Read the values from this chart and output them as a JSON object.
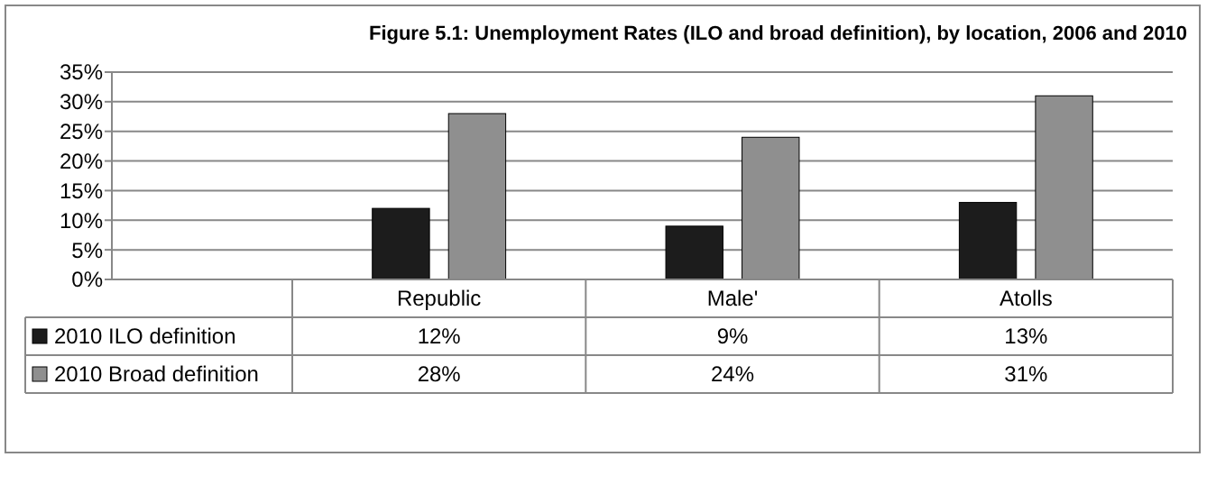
{
  "chart_data": {
    "type": "bar",
    "title": "Figure  5.1:  Unemployment Rates (ILO  and broad definition), by location, 2006 and 2010",
    "categories": [
      "Republic",
      "Male'",
      "Atolls"
    ],
    "series": [
      {
        "name": "2010 ILO definition",
        "color": "#1c1c1c",
        "values": [
          12,
          9,
          13
        ],
        "value_labels": [
          "12%",
          "9%",
          "13%"
        ]
      },
      {
        "name": "2010 Broad definition",
        "color": "#8f8f8f",
        "values": [
          28,
          24,
          31
        ],
        "value_labels": [
          "28%",
          "24%",
          "31%"
        ]
      }
    ],
    "ylim": [
      0,
      35
    ],
    "yticks": [
      {
        "value": 0,
        "label": "0%"
      },
      {
        "value": 5,
        "label": "5%"
      },
      {
        "value": 10,
        "label": "10%"
      },
      {
        "value": 15,
        "label": "15%"
      },
      {
        "value": 20,
        "label": "20%"
      },
      {
        "value": 25,
        "label": "25%"
      },
      {
        "value": 30,
        "label": "30%"
      },
      {
        "value": 35,
        "label": "35%"
      }
    ],
    "grid": "y",
    "legend": "bottom"
  }
}
